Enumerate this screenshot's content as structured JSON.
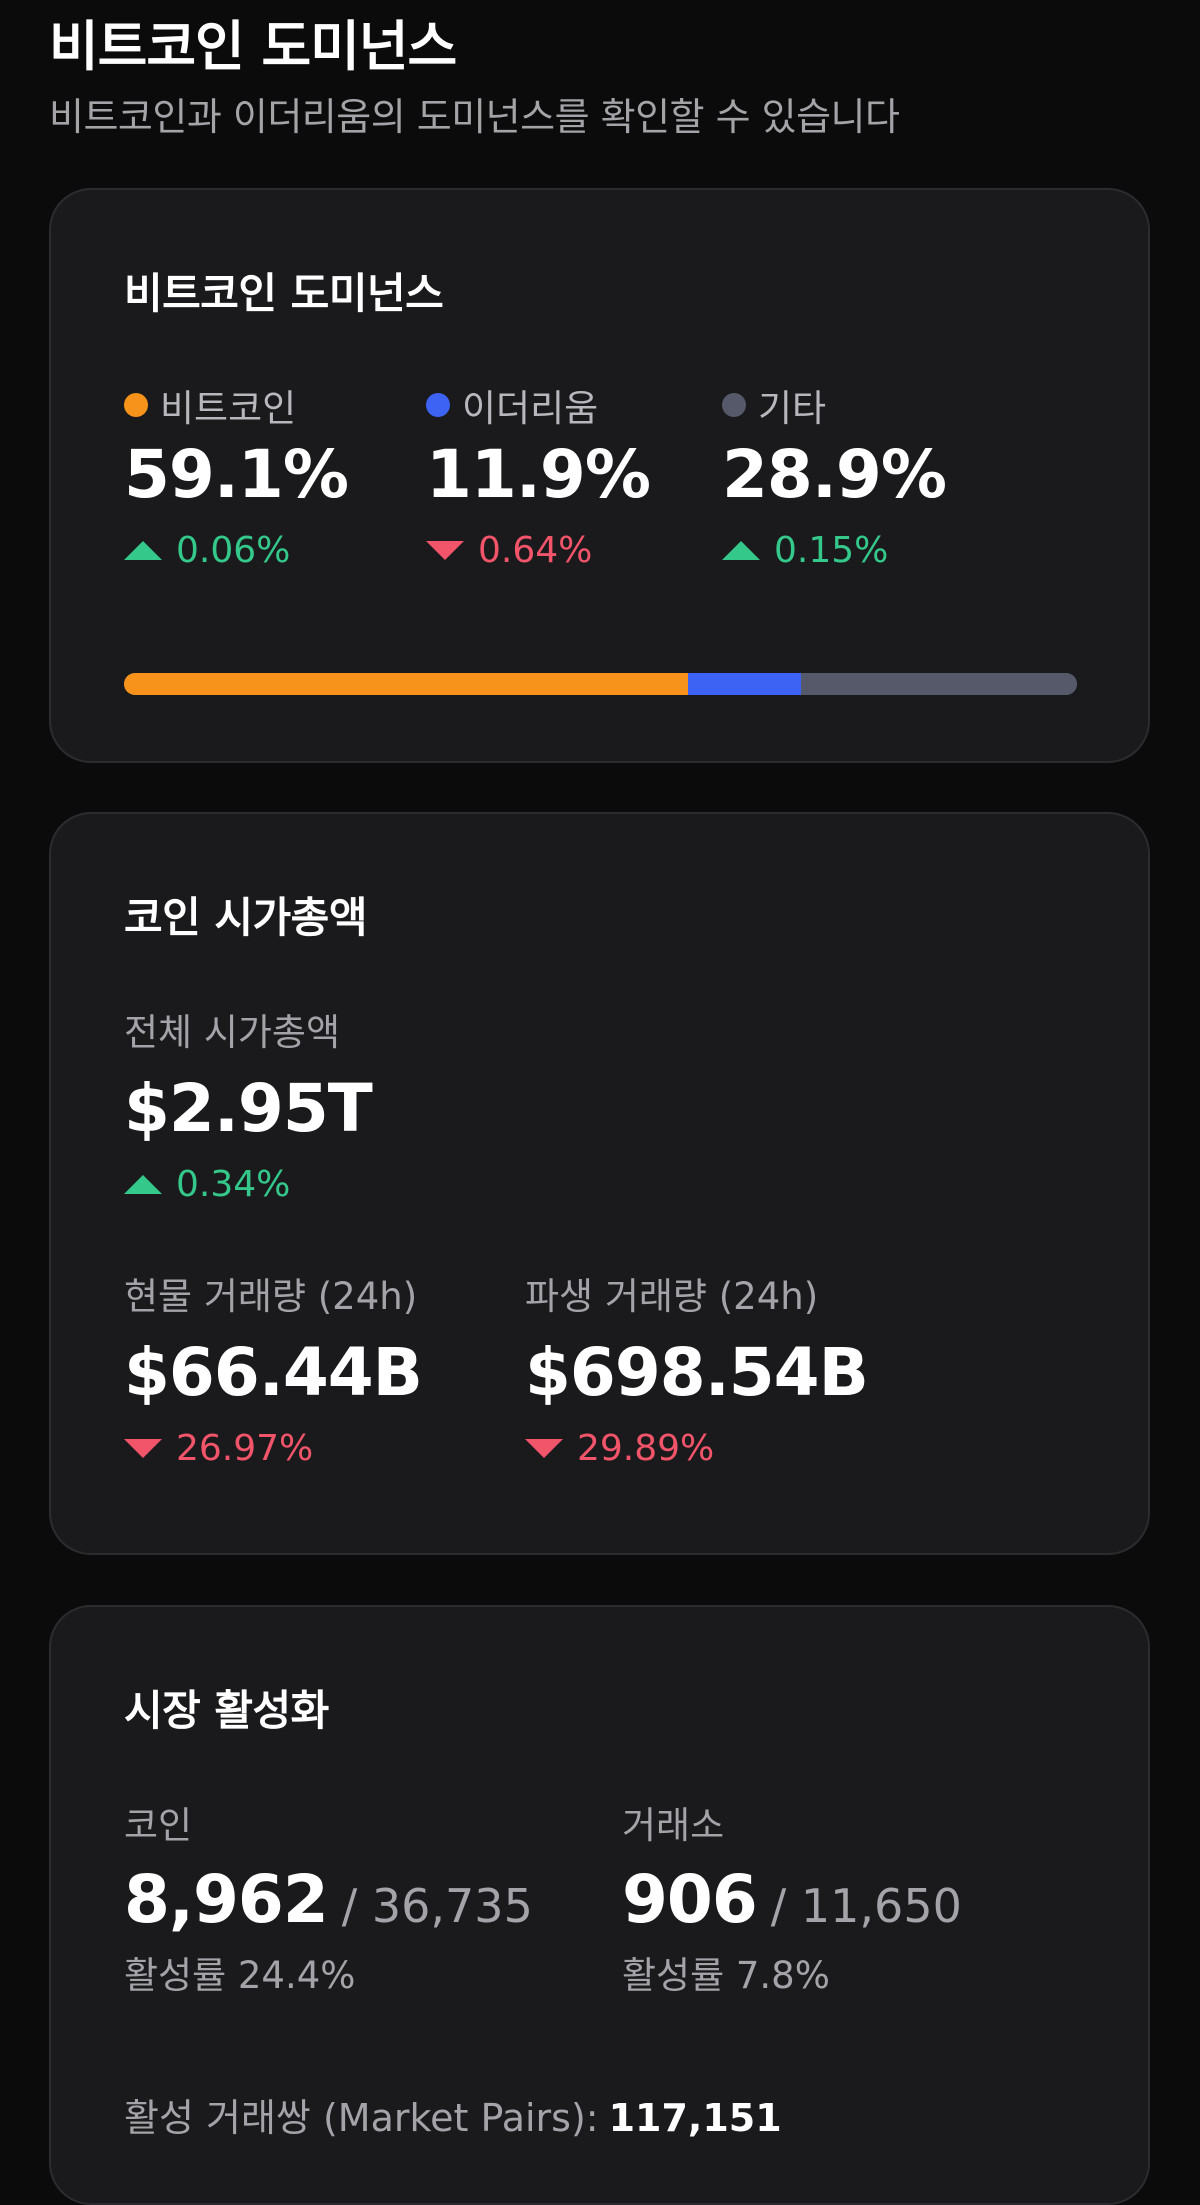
{
  "header": {
    "title": "비트코인 도미넌스",
    "subtitle": "비트코인과 이더리움의 도미넌스를 확인할 수 있습니다"
  },
  "dominance": {
    "title": "비트코인 도미넌스",
    "items": [
      {
        "label": "비트코인",
        "value": "59.1%",
        "change": "0.06%",
        "direction": "up",
        "color": "#f7931a",
        "share": 59.1
      },
      {
        "label": "이더리움",
        "value": "11.9%",
        "change": "0.64%",
        "direction": "down",
        "color": "#3d63f5",
        "share": 11.9
      },
      {
        "label": "기타",
        "value": "28.9%",
        "change": "0.15%",
        "direction": "up",
        "color": "#55596a",
        "share": 28.9
      }
    ]
  },
  "market_cap": {
    "title": "코인 시가총액",
    "total_label": "전체 시가총액",
    "total_value": "$2.95T",
    "total_change": "0.34%",
    "spot_label": "현물 거래량 (24h)",
    "spot_value": "$66.44B",
    "spot_change": "26.97%",
    "deriv_label": "파생 거래량 (24h)",
    "deriv_value": "$698.54B",
    "deriv_change": "29.89%"
  },
  "activity": {
    "title": "시장 활성화",
    "coins_label": "코인",
    "coins_active": "8,962",
    "coins_total": "/ 36,735",
    "coins_rate": "활성률 24.4%",
    "exch_label": "거래소",
    "exch_active": "906",
    "exch_total": "/ 11,650",
    "exch_rate": "활성률 7.8%",
    "pairs_label": "활성 거래쌍 (Market Pairs):",
    "pairs_value": "117,151"
  },
  "colors": {
    "up": "#34c88a",
    "down": "#f2546a",
    "card_bg": "#1a1a1c",
    "page_bg": "#0b0b0c"
  }
}
